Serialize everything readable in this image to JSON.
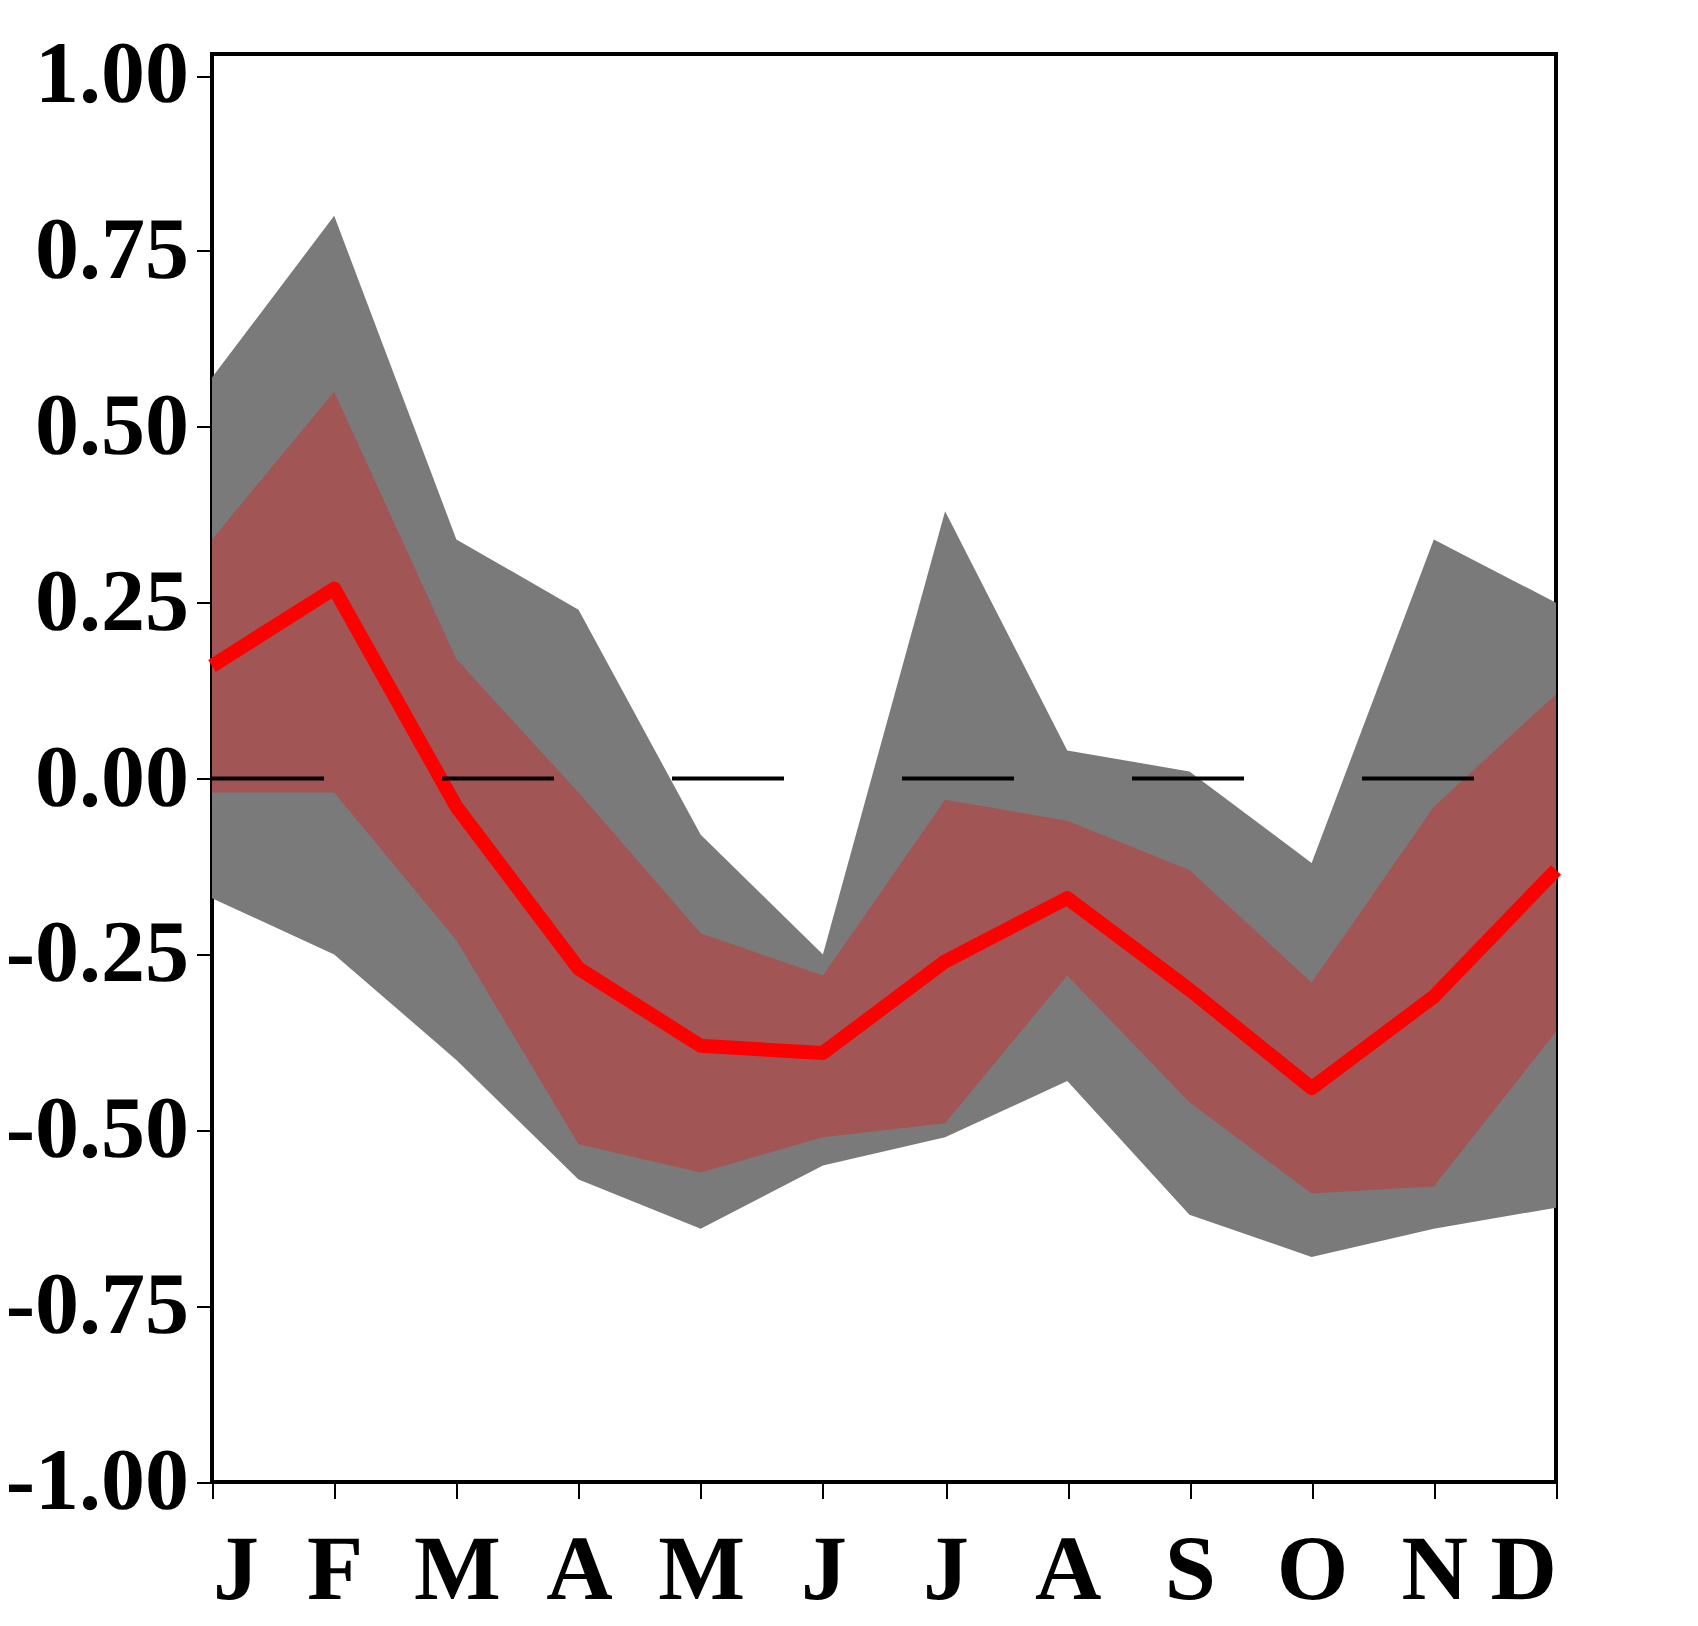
{
  "chart_data": {
    "type": "line",
    "categories": [
      "J",
      "F",
      "M",
      "A",
      "M",
      "J",
      "J",
      "A",
      "S",
      "O",
      "N",
      "D"
    ],
    "series": [
      {
        "color": "#7a7a7a",
        "values": [
          null,
          null,
          null,
          null,
          null,
          null,
          null,
          null,
          null,
          null,
          null,
          null
        ],
        "lower": [
          -0.17,
          -0.25,
          -0.4,
          -0.57,
          -0.64,
          -0.55,
          -0.51,
          -0.43,
          -0.62,
          -0.68,
          -0.64,
          -0.61
        ],
        "upper": [
          0.57,
          0.8,
          0.34,
          0.24,
          -0.08,
          -0.25,
          0.38,
          0.04,
          0.01,
          -0.12,
          0.34,
          0.25
        ]
      },
      {
        "color": "#ff0000",
        "values": [
          0.16,
          0.27,
          -0.04,
          -0.27,
          -0.38,
          -0.39,
          -0.26,
          -0.17,
          -0.3,
          -0.44,
          -0.31,
          -0.13
        ],
        "lower": [
          -0.02,
          -0.02,
          -0.23,
          -0.52,
          -0.56,
          -0.51,
          -0.49,
          -0.28,
          -0.46,
          -0.59,
          -0.58,
          -0.36
        ],
        "upper": [
          0.34,
          0.55,
          0.17,
          -0.02,
          -0.22,
          -0.28,
          -0.03,
          -0.06,
          -0.13,
          -0.29,
          -0.04,
          0.12
        ]
      }
    ],
    "ylim": [
      -1.0,
      1.03
    ],
    "yticks": [
      {
        "value": -1,
        "label": "-1.00"
      },
      {
        "value": -0.75,
        "label": "-0.75"
      },
      {
        "value": -0.5,
        "label": "-0.50"
      },
      {
        "value": -0.25,
        "label": "-0.25"
      },
      {
        "value": 0,
        "label": "0.00"
      },
      {
        "value": 0.25,
        "label": "0.25"
      },
      {
        "value": 0.5,
        "label": "0.50"
      },
      {
        "value": 0.75,
        "label": "0.75"
      },
      {
        "value": 1,
        "label": "1.00"
      }
    ],
    "ref_lines": [
      {
        "axis": "y",
        "value": 0,
        "color": "#000000",
        "line_style": "dashed"
      }
    ],
    "grid": false,
    "line_style": "solid",
    "marker": "none"
  }
}
